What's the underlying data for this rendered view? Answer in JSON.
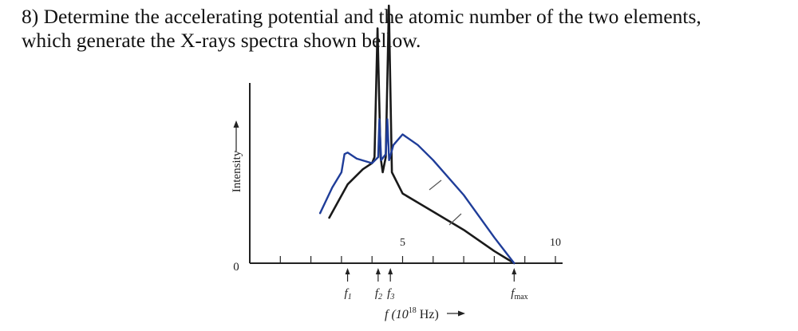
{
  "problem": {
    "line1": "8) Determine the accelerating potential and the atomic number of the two elements,",
    "line2": "which generate the X-rays spectra shown bellow."
  },
  "chart_data": {
    "type": "line",
    "xlabel_prefix": "f (10",
    "xlabel_exp": "18",
    "xlabel_suffix": " Hz)",
    "ylabel": "Intensity",
    "origin_label": "0",
    "xlim": [
      0,
      11
    ],
    "tick_labels": [
      {
        "x": 5,
        "label": "5"
      },
      {
        "x": 10,
        "label": "10"
      }
    ],
    "markers": [
      {
        "name": "f1",
        "sym": "f",
        "sub": "1",
        "x": 3.2
      },
      {
        "name": "f2",
        "sym": "f",
        "sub": "2",
        "x": 4.2
      },
      {
        "name": "f3",
        "sym": "f",
        "sub": "3",
        "x": 4.6
      },
      {
        "name": "fmax",
        "sym": "f",
        "sub": "max",
        "x": 8.65
      }
    ],
    "series": [
      {
        "color": "#1a1a1a",
        "note": "continuous spectrum with characteristic peaks at f2 and f3",
        "points": [
          [
            2.6,
            0.3
          ],
          [
            3.2,
            0.52
          ],
          [
            3.7,
            0.62
          ],
          [
            4.0,
            0.66
          ],
          [
            4.08,
            0.7
          ],
          [
            4.18,
            1.55
          ],
          [
            4.28,
            0.7
          ],
          [
            4.35,
            0.6
          ],
          [
            4.45,
            0.7
          ],
          [
            4.55,
            1.7
          ],
          [
            4.65,
            0.6
          ],
          [
            5.0,
            0.46
          ],
          [
            6.0,
            0.34
          ],
          [
            7.0,
            0.22
          ],
          [
            8.0,
            0.08
          ],
          [
            8.65,
            0.0
          ]
        ]
      },
      {
        "color": "#1f3d99",
        "note": "continuous spectrum with kink near f1",
        "points": [
          [
            2.3,
            0.33
          ],
          [
            2.7,
            0.5
          ],
          [
            3.0,
            0.6
          ],
          [
            3.1,
            0.72
          ],
          [
            3.2,
            0.73
          ],
          [
            3.5,
            0.69
          ],
          [
            4.0,
            0.66
          ],
          [
            4.2,
            0.7
          ],
          [
            4.24,
            0.95
          ],
          [
            4.3,
            0.68
          ],
          [
            4.45,
            0.72
          ],
          [
            4.5,
            0.95
          ],
          [
            4.56,
            0.68
          ],
          [
            4.7,
            0.78
          ],
          [
            5.0,
            0.85
          ],
          [
            5.5,
            0.78
          ],
          [
            6.0,
            0.68
          ],
          [
            7.0,
            0.45
          ],
          [
            8.0,
            0.17
          ],
          [
            8.65,
            0.0
          ]
        ]
      }
    ]
  }
}
